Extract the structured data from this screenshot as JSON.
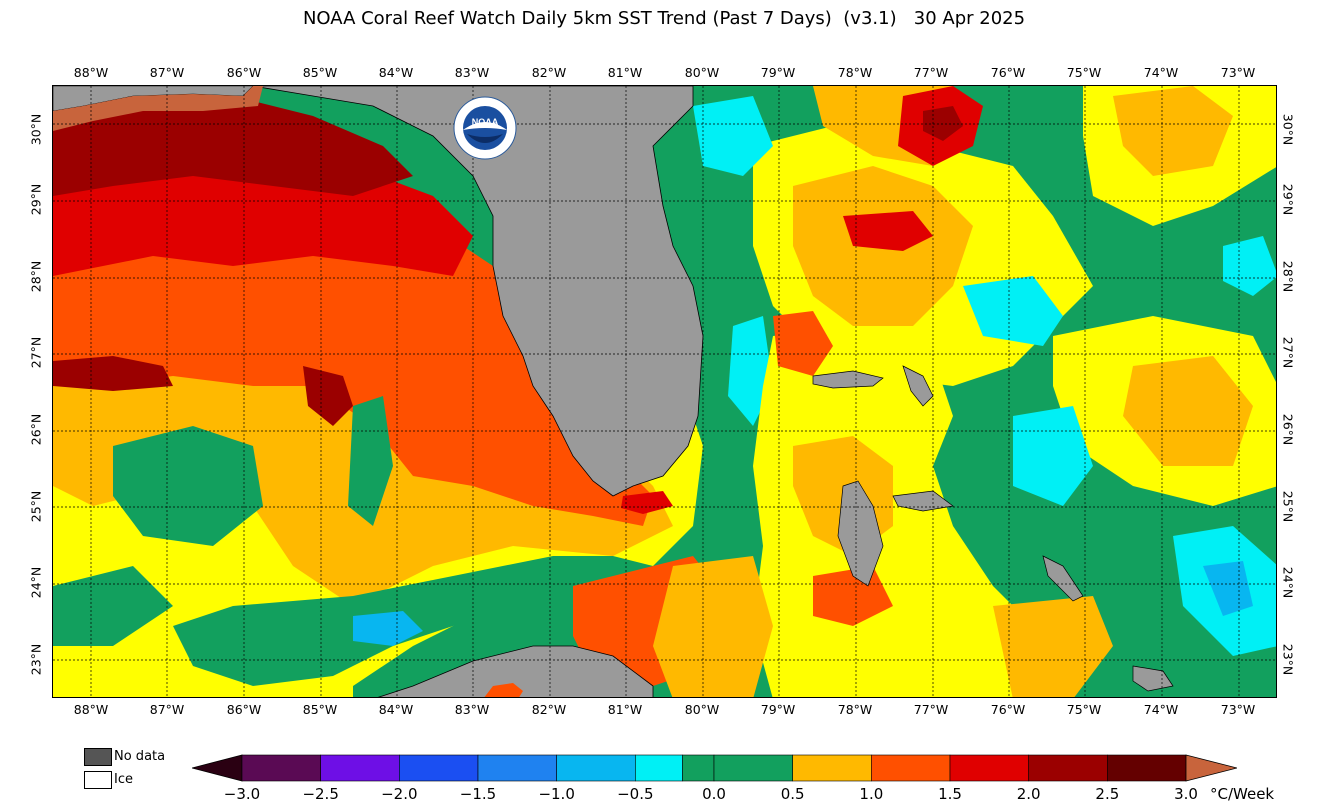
{
  "title": "NOAA Coral Reef Watch Daily 5km SST Trend (Past 7 Days)  (v3.1)   30 Apr 2025",
  "logo_text": "NOAA",
  "longitude_labels": [
    "88°W",
    "87°W",
    "86°W",
    "85°W",
    "84°W",
    "83°W",
    "82°W",
    "81°W",
    "80°W",
    "79°W",
    "78°W",
    "77°W",
    "76°W",
    "75°W",
    "74°W",
    "73°W"
  ],
  "latitude_labels": [
    "30°N",
    "29°N",
    "28°N",
    "27°N",
    "26°N",
    "25°N",
    "24°N",
    "23°N"
  ],
  "legend": {
    "no_data_label": "No data",
    "ice_label": "Ice",
    "unit": "°C/Week",
    "ticks": [
      "−3.0",
      "−2.5",
      "−2.0",
      "−1.5",
      "−1.0",
      "−0.5",
      "0.0",
      "0.5",
      "1.0",
      "1.5",
      "2.0",
      "2.5",
      "3.0"
    ],
    "colors": [
      "#5a0a54",
      "#6e0fe6",
      "#1b4ff2",
      "#1f82f0",
      "#08b6f0",
      "#00f0f5",
      "#12a05e",
      "#12a05e",
      "#ffff00",
      "#ffb900",
      "#ff5000",
      "#e00000",
      "#9b0000",
      "#640000"
    ],
    "under_color": "#2a0012",
    "over_color": "#c8643c"
  },
  "colors": {
    "land": "#9a9a9a",
    "no_data": "#555555",
    "trend_0_0p5": "#12a05e",
    "trend_0p5_1": "#ffff00",
    "trend_1_1p5": "#ffb900",
    "trend_1p5_2": "#ff5000",
    "trend_2_2p5": "#e00000",
    "trend_2p5_3": "#9b0000",
    "trend_gt_3": "#c8643c",
    "trend_neg": "#00f0f5"
  }
}
